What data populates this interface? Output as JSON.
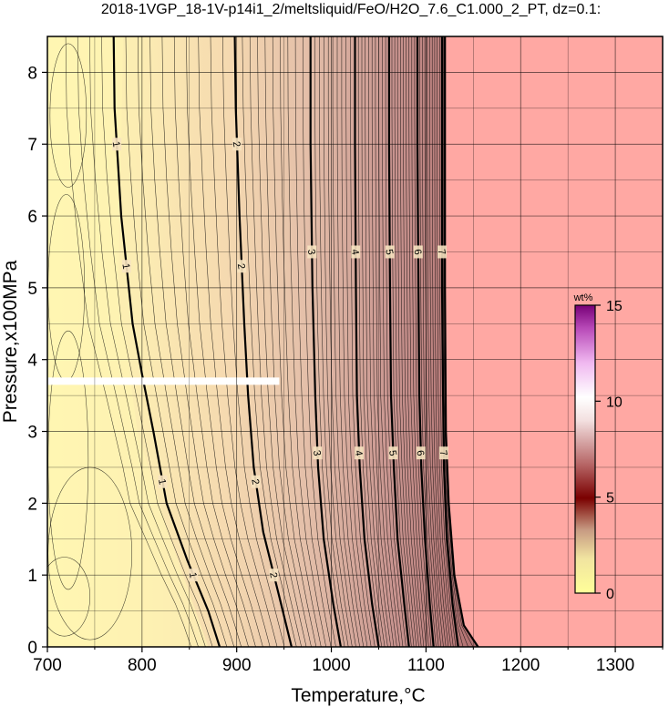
{
  "chart_data": {
    "type": "contour",
    "title": "2018-1VGP_18-1V-p14i1_2/meltsliquid/FeO/H2O_7.6_C1.000_2_PT, dz=0.1:",
    "xlabel": "Temperature,°C",
    "ylabel": "Pressure,x100MPa",
    "xlim": [
      700,
      1350
    ],
    "ylim": [
      0,
      8.5
    ],
    "x_ticks": [
      "700",
      "800",
      "900",
      "1000",
      "1100",
      "1200",
      "1300"
    ],
    "y_ticks": [
      "0",
      "1",
      "2",
      "3",
      "4",
      "5",
      "6",
      "7",
      "8"
    ],
    "grid": true,
    "contour_interval": 0.1,
    "labeled_contours": [
      {
        "level": "1",
        "points": [
          [
            770,
            8.5
          ],
          [
            771,
            7.5
          ],
          [
            778,
            6.0
          ],
          [
            790,
            4.5
          ],
          [
            800,
            3.8
          ],
          [
            812,
            3.0
          ],
          [
            826,
            2.0
          ],
          [
            848,
            1.2
          ],
          [
            870,
            0.5
          ],
          [
            882,
            0.0
          ]
        ]
      },
      {
        "level": "2",
        "points": [
          [
            898,
            8.5
          ],
          [
            899,
            7.5
          ],
          [
            903,
            6.0
          ],
          [
            908,
            4.5
          ],
          [
            912,
            3.5
          ],
          [
            918,
            2.5
          ],
          [
            928,
            1.6
          ],
          [
            945,
            0.7
          ],
          [
            958,
            0.0
          ]
        ]
      },
      {
        "level": "3",
        "points": [
          [
            978,
            8.5
          ],
          [
            978,
            7.0
          ],
          [
            980,
            5.0
          ],
          [
            983,
            3.5
          ],
          [
            986,
            2.5
          ],
          [
            992,
            1.5
          ],
          [
            1002,
            0.6
          ],
          [
            1010,
            0.0
          ]
        ]
      },
      {
        "level": "4",
        "points": [
          [
            1025,
            8.5
          ],
          [
            1025,
            7.0
          ],
          [
            1026,
            5.0
          ],
          [
            1027,
            3.5
          ],
          [
            1030,
            2.5
          ],
          [
            1035,
            1.5
          ],
          [
            1043,
            0.6
          ],
          [
            1050,
            0.0
          ]
        ]
      },
      {
        "level": "5",
        "points": [
          [
            1061,
            8.5
          ],
          [
            1061,
            7.0
          ],
          [
            1062,
            5.0
          ],
          [
            1063,
            3.5
          ],
          [
            1066,
            2.5
          ],
          [
            1070,
            1.5
          ],
          [
            1077,
            0.6
          ],
          [
            1082,
            0.0
          ]
        ]
      },
      {
        "level": "6",
        "points": [
          [
            1091,
            8.5
          ],
          [
            1091,
            7.0
          ],
          [
            1092,
            5.0
          ],
          [
            1093,
            3.5
          ],
          [
            1095,
            2.5
          ],
          [
            1099,
            1.5
          ],
          [
            1104,
            0.6
          ],
          [
            1108,
            0.0
          ]
        ]
      },
      {
        "level": "7",
        "points": [
          [
            1117,
            8.5
          ],
          [
            1117,
            7.0
          ],
          [
            1117,
            5.0
          ],
          [
            1118,
            3.5
          ],
          [
            1119,
            2.5
          ],
          [
            1122,
            1.5
          ],
          [
            1128,
            0.6
          ],
          [
            1134,
            0.0
          ]
        ]
      }
    ],
    "boundary": [
      [
        1120,
        8.5
      ],
      [
        1120,
        5.0
      ],
      [
        1121,
        3.0
      ],
      [
        1124,
        2.0
      ],
      [
        1130,
        1.0
      ],
      [
        1140,
        0.3
      ],
      [
        1155,
        0.0
      ]
    ],
    "stable_region_color": "#ffa8a3",
    "left_low_color": "#fff6b2",
    "highlight_band": {
      "x": [
        700,
        945
      ],
      "y": 3.7,
      "color": "#ffffff"
    },
    "colorbar": {
      "title": "wt%",
      "range": [
        0,
        15
      ],
      "ticks": [
        "0",
        "5",
        "10",
        "15"
      ],
      "colors": [
        "#ffff99",
        "#7a0000",
        "#ffffff",
        "#770077"
      ]
    }
  }
}
